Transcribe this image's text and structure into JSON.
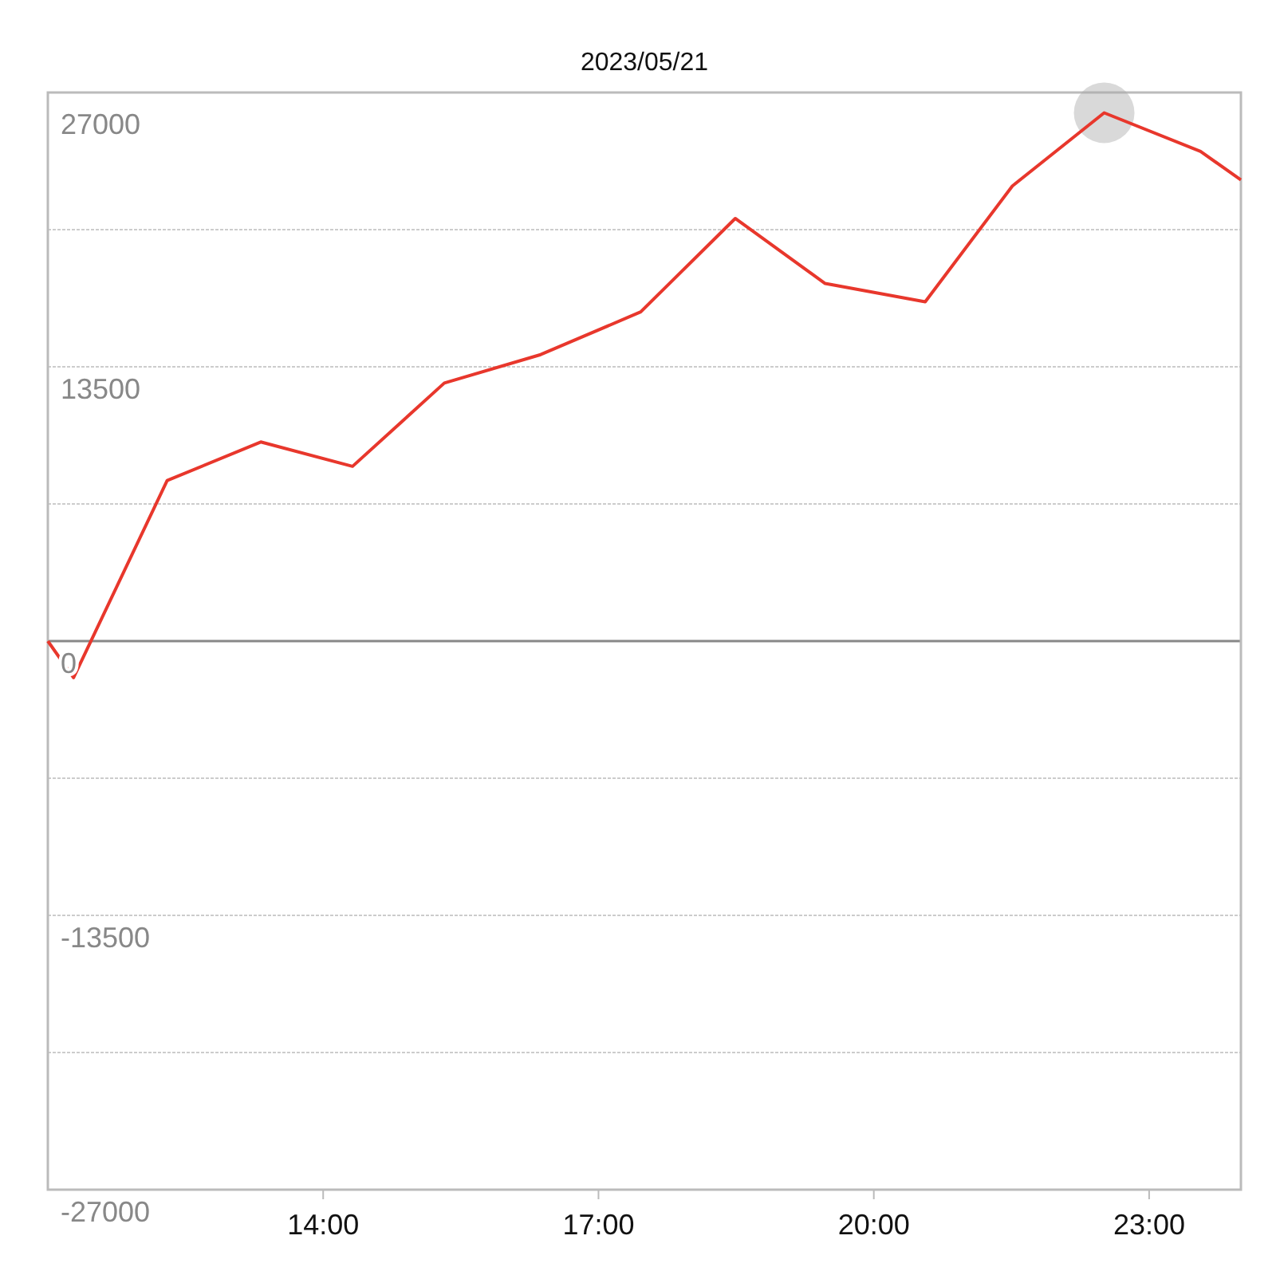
{
  "chart_data": {
    "type": "line",
    "title": "2023/05/21",
    "x": [
      11,
      11.28,
      12.3,
      13.32,
      14.32,
      15.32,
      16.37,
      17.46,
      18.49,
      19.47,
      20.56,
      21.51,
      22.51,
      23.56,
      24
    ],
    "series": [
      {
        "color": "#e8372c",
        "values": [
          0,
          -1800,
          7900,
          9800,
          8600,
          12700,
          14100,
          16200,
          20800,
          17600,
          16700,
          22400,
          26000,
          24100,
          22700
        ]
      }
    ],
    "xlim": [
      11,
      24
    ],
    "xticks": [
      {
        "value": 14,
        "label": "14:00"
      },
      {
        "value": 17,
        "label": "17:00"
      },
      {
        "value": 20,
        "label": "20:00"
      },
      {
        "value": 23,
        "label": "23:00"
      }
    ],
    "ylim": [
      -27000,
      27000
    ],
    "yticks": [
      27000,
      {
        "value": 20250,
        "label": null
      },
      13500,
      {
        "value": 6750,
        "label": null
      },
      0,
      {
        "value": -6750,
        "label": null
      },
      -13500,
      {
        "value": -20250,
        "label": null
      },
      -27000
    ],
    "grid": "y",
    "marker": "none",
    "line_style": "solid"
  }
}
